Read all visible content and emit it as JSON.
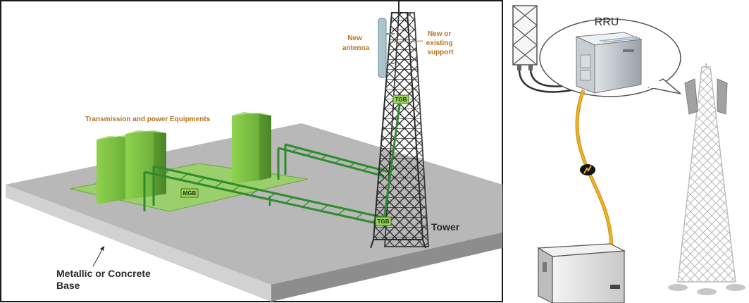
{
  "left_diagram": {
    "labels": {
      "new_antenna": [
        "New",
        "antenna"
      ],
      "new_or_existing_support": [
        "New or",
        "existing",
        "support"
      ],
      "tgb_top": "TGB",
      "tgb_bottom": "TGB",
      "mgb": "MGB",
      "transmission": "Transmission and power Equipments",
      "tower": "Tower",
      "base": [
        "Metallic or Concrete",
        "Base"
      ]
    }
  },
  "right_diagram": {
    "labels": {
      "rru": "RRU"
    }
  },
  "colors": {
    "green_box": "#7bc142",
    "green_cable": "#2e8b2e",
    "slab_top": "#b4b4b4",
    "tower_dark": "#2b2b2b",
    "fiber_yellow": "#f0b323",
    "label_orange": "#b8731e"
  }
}
